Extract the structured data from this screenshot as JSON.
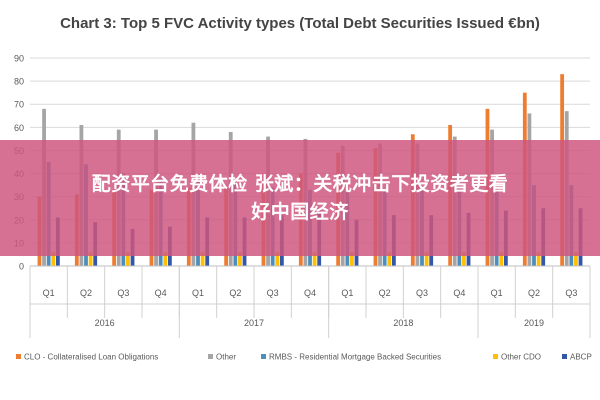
{
  "chart_data": {
    "type": "bar",
    "title": "Chart 3: Top 5 FVC Activity types (Total Debt Securities Issued €bn)",
    "xlabel": "",
    "ylabel": "",
    "ylim": [
      0,
      90
    ],
    "yticks": [
      0,
      10,
      20,
      30,
      40,
      50,
      60,
      70,
      80,
      90
    ],
    "grid": true,
    "legend_position": "bottom",
    "categories": [
      "Q1",
      "Q2",
      "Q3",
      "Q4",
      "Q1",
      "Q2",
      "Q3",
      "Q4",
      "Q1",
      "Q2",
      "Q3",
      "Q4",
      "Q1",
      "Q2",
      "Q3"
    ],
    "groups": [
      {
        "label": "2016",
        "count": 4
      },
      {
        "label": "2017",
        "count": 4
      },
      {
        "label": "2018",
        "count": 4
      },
      {
        "label": "2019",
        "count": 3
      }
    ],
    "series": [
      {
        "name": "CLO - Collateralised Loan Obligations",
        "color": "#ed7d31",
        "values": [
          30,
          31,
          32,
          33,
          34,
          35,
          36,
          40,
          49,
          51,
          57,
          61,
          68,
          75,
          83
        ]
      },
      {
        "name": "Other",
        "color": "#a5a5a5",
        "values": [
          68,
          61,
          59,
          59,
          62,
          58,
          56,
          55,
          52,
          53,
          53,
          56,
          59,
          66,
          67
        ]
      },
      {
        "name": "RMBS - Residential Mortgage Backed Securities",
        "color": "#4b8fbe",
        "values": [
          45,
          44,
          40,
          38,
          37,
          36,
          34,
          33,
          32,
          32,
          33,
          35,
          34,
          35,
          35
        ]
      },
      {
        "name": "Other CDO",
        "color": "#ffc000",
        "values": [
          6,
          6,
          6,
          6,
          6,
          6,
          6,
          6,
          6,
          6,
          6,
          6,
          6,
          6,
          6
        ]
      },
      {
        "name": "ABCP",
        "color": "#3457a8",
        "values": [
          21,
          19,
          16,
          17,
          21,
          21,
          22,
          25,
          20,
          22,
          22,
          23,
          24,
          25,
          25
        ]
      }
    ]
  },
  "overlay": {
    "line1": "配资平台免费体检 张斌：关税冲击下投资者更看",
    "line2": "好中国经济"
  }
}
